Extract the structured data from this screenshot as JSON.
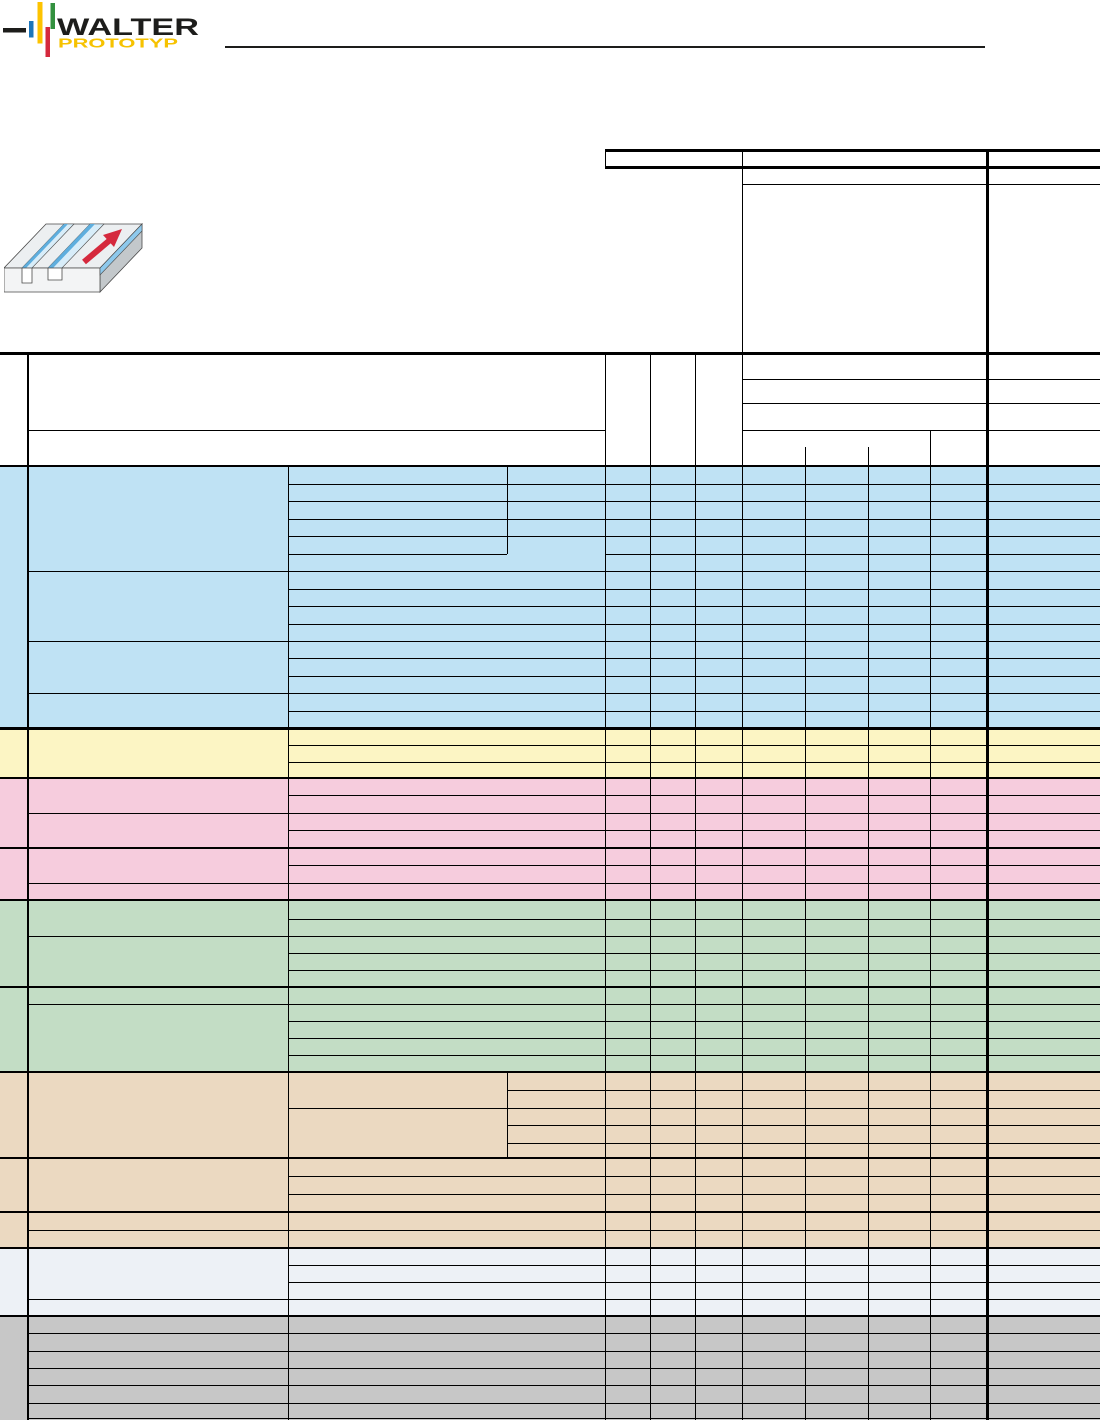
{
  "logo": {
    "brand": "WALTER",
    "sub": "PROTOTYP",
    "colors": {
      "brand_text": "#1d1d1b",
      "sub_text": "#f6c200",
      "dash": "#1d1d1b",
      "bar_blue": "#1b75bb",
      "bar_yellow": "#fdc300",
      "bar_red": "#d5293d",
      "bar_green": "#33913f"
    }
  },
  "header": {
    "rule_color": "#1d1d1b"
  },
  "illustration": {
    "name": "slot-milling-workpiece",
    "colors": {
      "body_top": "#eceff1",
      "body_front": "#f3f4f5",
      "body_side": "#c3c8cb",
      "slot_wall_blue": "#5eaede",
      "slot_floor": "#d8edf9",
      "edge_blue": "#8ec9ec",
      "arrow_red": "#d5293d",
      "outline": "#4a4a4a"
    }
  },
  "table": {
    "grid_color": "#000000",
    "bands": [
      {
        "id": "blue",
        "color": "#bfe2f4",
        "rows": 15
      },
      {
        "id": "yellow",
        "color": "#fcf5c4",
        "rows": 3
      },
      {
        "id": "pink",
        "color": "#f6ccdd",
        "rows": 7
      },
      {
        "id": "green",
        "color": "#c3ddc5",
        "rows": 10
      },
      {
        "id": "tan",
        "color": "#ebd9c1",
        "rows": 10
      },
      {
        "id": "lightblue",
        "color": "#edf1f6",
        "rows": 4
      },
      {
        "id": "gray",
        "color": "#c7c7c7",
        "rows": 6
      }
    ]
  }
}
